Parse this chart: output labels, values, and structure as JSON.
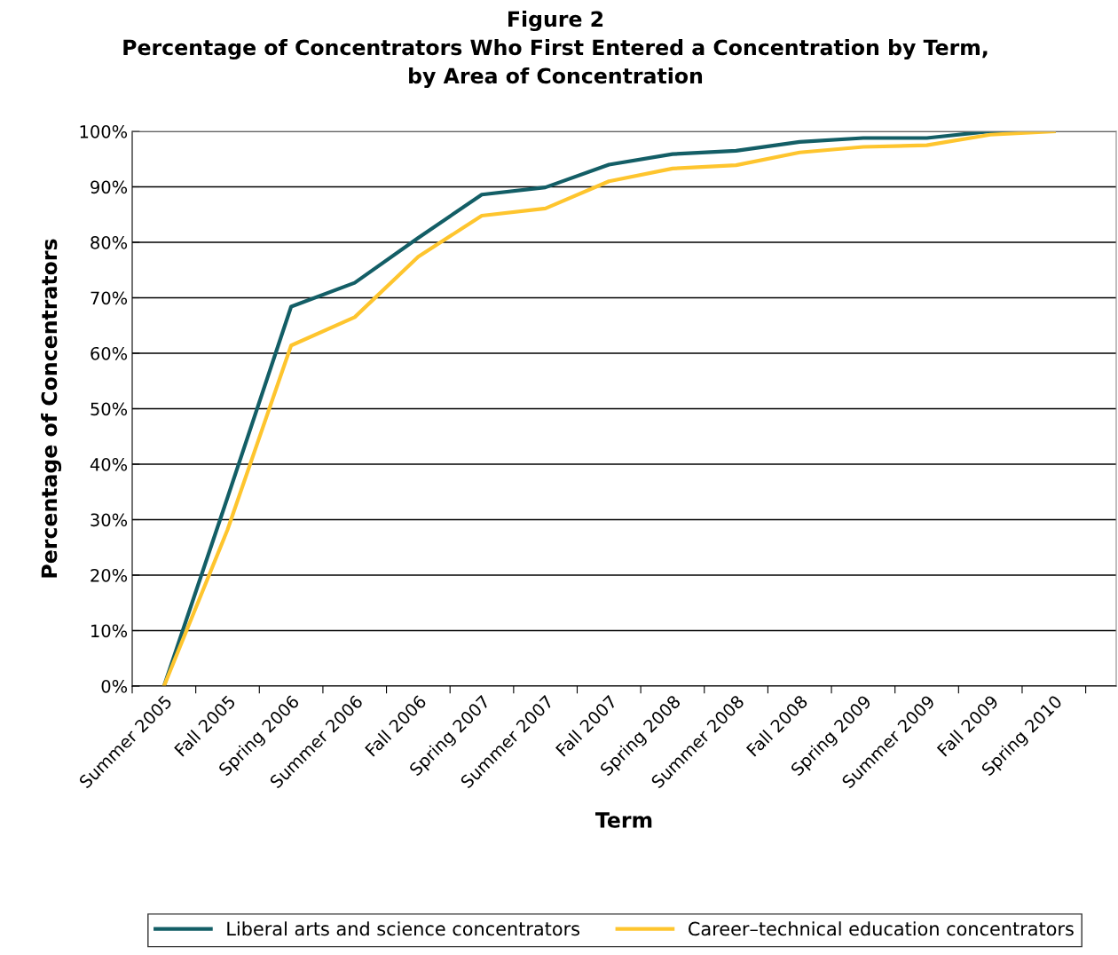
{
  "chart_data": {
    "type": "line",
    "title": "Figure 2\nPercentage of Concentrators Who First Entered a Concentration by Term,\nby Area of Concentration",
    "xlabel": "Term",
    "ylabel": "Percentage of Concentrators",
    "categories": [
      "Summer 2005",
      "Fall 2005",
      "Spring 2006",
      "Summer 2006",
      "Fall 2006",
      "Spring 2007",
      "Summer 2007",
      "Fall 2007",
      "Spring 2008",
      "Summer 2008",
      "Fall 2008",
      "Spring 2009",
      "Summer 2009",
      "Fall 2009",
      "Spring 2010"
    ],
    "series": [
      {
        "name": "Liberal arts and science concentrators",
        "color": "#135e66",
        "values": [
          0,
          34.0,
          68.4,
          72.7,
          80.8,
          88.6,
          89.9,
          94.0,
          95.9,
          96.5,
          98.1,
          98.8,
          98.8,
          100,
          100
        ]
      },
      {
        "name": "Career–technical education concentrators",
        "color": "#fec52e",
        "values": [
          0,
          28.2,
          61.4,
          66.5,
          77.4,
          84.8,
          86.1,
          91.0,
          93.3,
          93.9,
          96.2,
          97.2,
          97.5,
          99.4,
          100
        ]
      }
    ],
    "ylim": [
      0,
      100
    ],
    "yticks": [
      {
        "value": 0,
        "label": "0%"
      },
      {
        "value": 10,
        "label": "10%"
      },
      {
        "value": 20,
        "label": "20%"
      },
      {
        "value": 30,
        "label": "30%"
      },
      {
        "value": 40,
        "label": "40%"
      },
      {
        "value": 50,
        "label": "50%"
      },
      {
        "value": 60,
        "label": "60%"
      },
      {
        "value": 70,
        "label": "70%"
      },
      {
        "value": 80,
        "label": "80%"
      },
      {
        "value": 90,
        "label": "90%"
      },
      {
        "value": 100,
        "label": "100%"
      }
    ],
    "grid": "y",
    "legend": "bottom",
    "line_style": "solid",
    "marker": "none"
  }
}
